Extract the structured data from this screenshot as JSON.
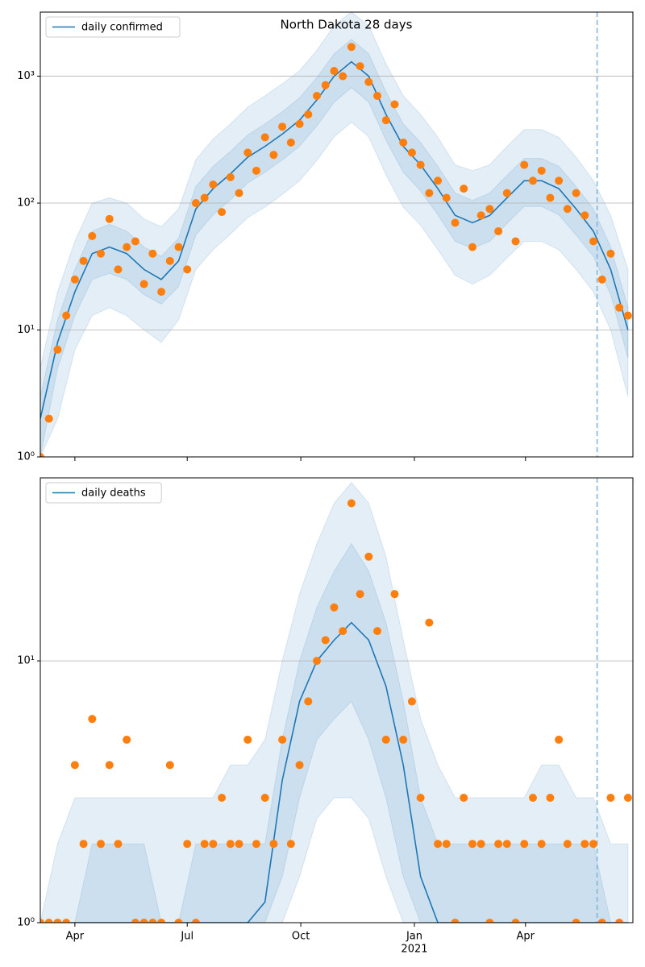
{
  "chart_data": [
    {
      "type": "line",
      "title": "North Dakota 28 days",
      "x": [
        -28,
        -14,
        0,
        14,
        28,
        42,
        56,
        70,
        84,
        98,
        112,
        126,
        140,
        154,
        168,
        182,
        196,
        210,
        224,
        238,
        252,
        266,
        280,
        294,
        308,
        322,
        336,
        350,
        364,
        378,
        392,
        406,
        420,
        434,
        448
      ],
      "series": [
        {
          "name": "daily confirmed",
          "color": "#1f77b4",
          "values": [
            2,
            8,
            20,
            40,
            45,
            40,
            30,
            25,
            35,
            90,
            130,
            170,
            230,
            280,
            350,
            450,
            650,
            1000,
            1300,
            1000,
            500,
            280,
            200,
            130,
            80,
            70,
            80,
            110,
            150,
            150,
            130,
            90,
            60,
            30,
            10
          ]
        }
      ],
      "band_color": "#1f77b4",
      "bands": [
        {
          "upper": [
            5,
            20,
            50,
            100,
            110,
            100,
            75,
            65,
            90,
            220,
            320,
            420,
            570,
            700,
            870,
            1100,
            1600,
            2500,
            3200,
            2500,
            1250,
            700,
            500,
            330,
            200,
            180,
            200,
            280,
            380,
            380,
            330,
            230,
            150,
            80,
            30
          ],
          "lower": [
            1,
            2,
            7,
            13,
            15,
            13,
            10,
            8,
            12,
            30,
            43,
            57,
            77,
            93,
            117,
            150,
            217,
            333,
            433,
            333,
            167,
            93,
            67,
            43,
            27,
            23,
            27,
            37,
            50,
            50,
            43,
            30,
            20,
            10,
            3
          ]
        },
        {
          "upper": [
            3,
            12,
            30,
            60,
            68,
            60,
            45,
            38,
            53,
            135,
            195,
            255,
            345,
            420,
            525,
            675,
            975,
            1500,
            1950,
            1500,
            750,
            420,
            300,
            195,
            120,
            105,
            120,
            165,
            225,
            225,
            195,
            135,
            90,
            45,
            15
          ],
          "lower": [
            1,
            5,
            13,
            25,
            28,
            25,
            19,
            16,
            22,
            56,
            81,
            106,
            144,
            175,
            219,
            281,
            406,
            625,
            813,
            625,
            313,
            175,
            125,
            81,
            50,
            44,
            50,
            69,
            94,
            94,
            81,
            56,
            38,
            19,
            6
          ]
        }
      ],
      "scatter": {
        "color": "#ff7f0e",
        "x": [
          -28,
          -21,
          -14,
          -7,
          0,
          7,
          14,
          21,
          28,
          35,
          42,
          49,
          56,
          63,
          70,
          77,
          84,
          91,
          98,
          105,
          112,
          119,
          126,
          133,
          140,
          147,
          154,
          161,
          168,
          175,
          182,
          189,
          196,
          203,
          210,
          217,
          224,
          231,
          238,
          245,
          252,
          259,
          266,
          273,
          280,
          287,
          294,
          301,
          308,
          315,
          322,
          329,
          336,
          343,
          350,
          357,
          364,
          371,
          378,
          385,
          392,
          399,
          406,
          413,
          420,
          427,
          434,
          441,
          448
        ],
        "values": [
          1,
          2,
          7,
          13,
          25,
          35,
          55,
          40,
          75,
          30,
          45,
          50,
          23,
          40,
          20,
          35,
          45,
          30,
          100,
          110,
          140,
          85,
          160,
          120,
          250,
          180,
          330,
          240,
          400,
          300,
          420,
          500,
          700,
          850,
          1100,
          1000,
          1700,
          1200,
          900,
          700,
          450,
          600,
          300,
          250,
          200,
          120,
          150,
          110,
          70,
          130,
          45,
          80,
          90,
          60,
          120,
          50,
          200,
          150,
          180,
          110,
          150,
          90,
          120,
          80,
          50,
          25,
          40,
          15,
          13
        ]
      },
      "xlim": [
        -28,
        452
      ],
      "ylim": [
        1,
        3200
      ],
      "log_y": true,
      "yticks": [
        {
          "value": 1,
          "label": "10⁰"
        },
        {
          "value": 10,
          "label": "10¹"
        },
        {
          "value": 100,
          "label": "10²"
        },
        {
          "value": 1000,
          "label": "10³"
        }
      ],
      "xticks": [
        0,
        91,
        183,
        275,
        365
      ],
      "grid": true,
      "legend": "upper left",
      "vline": 423,
      "vline_color": "#7fb3d5"
    },
    {
      "type": "line",
      "x": [
        -28,
        -14,
        0,
        14,
        28,
        42,
        56,
        70,
        84,
        98,
        112,
        126,
        140,
        154,
        168,
        182,
        196,
        210,
        224,
        238,
        252,
        266,
        280,
        294,
        308,
        322,
        336,
        350,
        364,
        378,
        392,
        406,
        420,
        434,
        448
      ],
      "series": [
        {
          "name": "daily deaths",
          "color": "#1f77b4",
          "values": [
            1,
            1,
            1,
            1,
            1,
            1,
            1,
            1,
            1,
            1,
            1,
            1,
            1,
            1.2,
            3.5,
            7,
            10,
            12,
            14,
            12,
            8,
            4,
            1.5,
            1,
            1,
            1,
            1,
            1,
            1,
            1,
            1,
            1,
            1,
            1,
            1
          ]
        }
      ],
      "band_color": "#1f77b4",
      "bands": [
        {
          "upper": [
            1,
            2,
            3,
            3,
            3,
            3,
            3,
            3,
            3,
            3,
            3,
            4,
            4,
            5,
            10,
            18,
            28,
            40,
            48,
            40,
            25,
            12,
            6,
            4,
            3,
            3,
            3,
            3,
            3,
            4,
            4,
            3,
            3,
            2,
            2
          ],
          "lower": [
            1,
            1,
            1,
            1,
            1,
            1,
            1,
            1,
            1,
            1,
            1,
            1,
            1,
            1,
            1,
            1.5,
            2.5,
            3,
            3,
            2.5,
            1.5,
            1,
            1,
            1,
            1,
            1,
            1,
            1,
            1,
            1,
            1,
            1,
            1,
            1,
            1
          ]
        },
        {
          "upper": [
            1,
            1,
            1,
            2,
            2,
            2,
            2,
            1,
            1,
            2,
            2,
            2,
            2,
            2,
            5,
            10,
            16,
            22,
            28,
            22,
            14,
            7,
            3,
            2,
            2,
            2,
            2,
            2,
            2,
            2,
            2,
            2,
            2,
            1,
            1
          ],
          "lower": [
            1,
            1,
            1,
            1,
            1,
            1,
            1,
            1,
            1,
            1,
            1,
            1,
            1,
            1,
            1.5,
            3,
            5,
            6,
            7,
            5,
            3,
            1.5,
            1,
            1,
            1,
            1,
            1,
            1,
            1,
            1,
            1,
            1,
            1,
            1,
            1
          ]
        }
      ],
      "scatter": {
        "color": "#ff7f0e",
        "x": [
          -28,
          -21,
          -14,
          -7,
          0,
          7,
          14,
          21,
          28,
          35,
          42,
          49,
          56,
          63,
          70,
          77,
          84,
          91,
          98,
          105,
          112,
          119,
          126,
          133,
          140,
          147,
          154,
          161,
          168,
          175,
          182,
          189,
          196,
          203,
          210,
          217,
          224,
          231,
          238,
          245,
          252,
          259,
          266,
          273,
          280,
          287,
          294,
          301,
          308,
          315,
          322,
          329,
          336,
          343,
          350,
          357,
          364,
          371,
          378,
          385,
          392,
          399,
          406,
          413,
          420,
          427,
          434,
          441,
          448
        ],
        "values": [
          1,
          1,
          1,
          1,
          4,
          2,
          6,
          2,
          4,
          2,
          5,
          1,
          1,
          1,
          1,
          4,
          1,
          2,
          1,
          2,
          2,
          3,
          2,
          2,
          5,
          2,
          3,
          2,
          5,
          2,
          4,
          7,
          10,
          12,
          16,
          13,
          40,
          18,
          25,
          13,
          5,
          18,
          5,
          7,
          3,
          14,
          2,
          2,
          1,
          3,
          2,
          2,
          1,
          2,
          2,
          1,
          2,
          3,
          2,
          3,
          5,
          2,
          1,
          2,
          2,
          1,
          3,
          1,
          3
        ]
      },
      "xlim": [
        -28,
        452
      ],
      "ylim": [
        1,
        50
      ],
      "log_y": true,
      "yticks": [
        {
          "value": 1,
          "label": "10⁰"
        },
        {
          "value": 10,
          "label": "10¹"
        }
      ],
      "xticks": [
        {
          "value": 0,
          "label": "Apr"
        },
        {
          "value": 91,
          "label": "Jul"
        },
        {
          "value": 183,
          "label": "Oct"
        },
        {
          "value": 275,
          "label": "Jan"
        },
        {
          "value": 365,
          "label": "Apr"
        }
      ],
      "year_label": "2021",
      "grid": true,
      "legend": "upper left",
      "vline": 423,
      "vline_color": "#7fb3d5"
    }
  ]
}
